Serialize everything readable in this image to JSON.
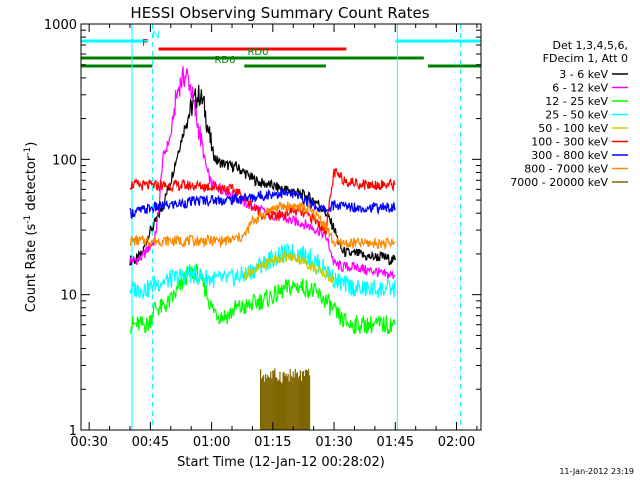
{
  "chart_data": {
    "type": "line",
    "title": "HESSI Observing Summary Count Rates",
    "xlabel": "Start Time (12-Jan-12 00:28:02)",
    "ylabel_prefix": "Count Rate (s",
    "ylabel_sup1": "-1",
    "ylabel_mid": " detector",
    "ylabel_sup2": "-1",
    "ylabel_suffix": ")",
    "ylog": true,
    "ylim": [
      1,
      1000
    ],
    "xlim_min": [
      28,
      126
    ],
    "x_ticks": [
      {
        "min": 30,
        "label": "00:30"
      },
      {
        "min": 45,
        "label": "00:45"
      },
      {
        "min": 60,
        "label": "01:00"
      },
      {
        "min": 75,
        "label": "01:15"
      },
      {
        "min": 90,
        "label": "01:30"
      },
      {
        "min": 105,
        "label": "01:45"
      },
      {
        "min": 120,
        "label": "02:00"
      }
    ],
    "y_ticks": [
      {
        "value": 1,
        "label": "1"
      },
      {
        "value": 10,
        "label": "10"
      },
      {
        "value": 100,
        "label": "100"
      },
      {
        "value": 1000,
        "label": "1000"
      }
    ],
    "legend_header": [
      "Det 1,3,4,5,6,",
      "FDecim 1, Att 0"
    ],
    "series": [
      {
        "name": "3 - 6 keV",
        "color": "#000000",
        "x": [
          40,
          41.5,
          43,
          44.5,
          46,
          48,
          50,
          52,
          54,
          56,
          57,
          58,
          59,
          60,
          61,
          62,
          64,
          66,
          68,
          70,
          72,
          74,
          76,
          78,
          80,
          82,
          84,
          86,
          88,
          89,
          90,
          91,
          92,
          94,
          96,
          98,
          100,
          102,
          104,
          105
        ],
        "y": [
          18,
          18,
          20,
          28,
          33,
          45,
          70,
          120,
          200,
          280,
          300,
          260,
          180,
          120,
          100,
          95,
          90,
          88,
          80,
          72,
          67,
          65,
          62,
          60,
          58,
          55,
          52,
          48,
          40,
          35,
          31,
          25,
          21,
          20,
          20,
          19,
          19,
          19,
          18,
          18
        ]
      },
      {
        "name": "6 - 12 keV",
        "color": "#ff00ff",
        "x": [
          40,
          41.5,
          43,
          44.5,
          46,
          47,
          48,
          50,
          51,
          52,
          53,
          54,
          55,
          56,
          57,
          58,
          59,
          60,
          62,
          64,
          66,
          68,
          70,
          72,
          74,
          76,
          78,
          80,
          82,
          84,
          86,
          88,
          89,
          90,
          92,
          94,
          96,
          98,
          100,
          102,
          104,
          105
        ],
        "y": [
          18,
          18,
          19,
          22,
          25,
          40,
          100,
          150,
          250,
          350,
          400,
          420,
          330,
          220,
          160,
          110,
          80,
          65,
          62,
          58,
          52,
          48,
          45,
          42,
          40,
          38,
          36,
          35,
          34,
          32,
          30,
          27,
          22,
          17,
          16,
          16,
          16,
          15,
          15,
          14,
          14,
          14
        ]
      },
      {
        "name": "12 - 25 keV",
        "color": "#00ff00",
        "x": [
          40,
          41.5,
          43,
          44.5,
          46,
          48,
          50,
          52,
          54,
          56,
          58,
          60,
          62,
          64,
          66,
          68,
          70,
          72,
          74,
          76,
          78,
          80,
          82,
          84,
          86,
          88,
          90,
          92,
          94,
          96,
          98,
          100,
          102,
          104,
          105
        ],
        "y": [
          6,
          6,
          6,
          6,
          8,
          8,
          9,
          11,
          14,
          15,
          12,
          8,
          7,
          7,
          8,
          8,
          8.5,
          9,
          9.5,
          10,
          11,
          11.5,
          11.5,
          11,
          10,
          9,
          7.5,
          6.5,
          6,
          6,
          6,
          6,
          6,
          6,
          6
        ]
      },
      {
        "name": "25 - 50 keV",
        "color": "#00ffff",
        "x": [
          40,
          41.5,
          43,
          44.5,
          46,
          48,
          50,
          52,
          54,
          56,
          58,
          60,
          62,
          64,
          66,
          68,
          70,
          72,
          74,
          76,
          78,
          80,
          82,
          84,
          86,
          88,
          90,
          92,
          94,
          96,
          98,
          100,
          102,
          104,
          105
        ],
        "y": [
          11,
          11,
          11,
          11,
          12,
          12.5,
          13,
          13.5,
          14,
          14,
          13.5,
          13,
          13,
          13,
          13.5,
          14,
          15,
          16.5,
          18,
          19,
          20,
          20.5,
          20,
          19,
          17,
          15.5,
          13,
          12,
          11.5,
          11,
          11,
          11,
          11,
          11,
          11
        ]
      },
      {
        "name": "50 - 100 keV",
        "color": "#cccc00",
        "x": [
          68,
          70,
          72,
          74,
          76,
          78,
          80,
          82,
          84,
          86,
          88,
          90
        ],
        "y": [
          14,
          15,
          16,
          17.5,
          18.5,
          19,
          19,
          18,
          16.5,
          15,
          14,
          13
        ]
      },
      {
        "name": "100 - 300 keV",
        "color": "#ff0000",
        "x": [
          40,
          41.5,
          43,
          44.5,
          46,
          48,
          50,
          52,
          54,
          56,
          58,
          60,
          62,
          64,
          66,
          68,
          70,
          72,
          74,
          76,
          78,
          80,
          82,
          84,
          86,
          88,
          90,
          92,
          94,
          96,
          98,
          100,
          102,
          104,
          105
        ],
        "y": [
          65,
          65,
          64,
          64,
          64,
          64,
          64,
          64,
          64,
          64,
          63,
          63,
          62,
          61,
          58,
          52,
          45,
          40,
          38,
          38,
          40,
          42,
          40,
          38,
          34,
          30,
          80,
          72,
          68,
          66,
          65,
          65,
          65,
          65,
          65
        ]
      },
      {
        "name": "300 - 800 keV",
        "color": "#0000ff",
        "x": [
          40,
          41.5,
          43,
          44.5,
          46,
          48,
          50,
          52,
          54,
          56,
          58,
          60,
          62,
          64,
          66,
          68,
          70,
          72,
          74,
          76,
          78,
          80,
          82,
          84,
          86,
          88,
          90,
          92,
          94,
          96,
          98,
          100,
          102,
          104,
          105
        ],
        "y": [
          40,
          41,
          42,
          43,
          44,
          45,
          46,
          47,
          48,
          49,
          50,
          50,
          50,
          50,
          51,
          52,
          52,
          54,
          55,
          56,
          56,
          55,
          52,
          48,
          44,
          42,
          46,
          45,
          45,
          44,
          44,
          44,
          44,
          44,
          44
        ]
      },
      {
        "name": "800 - 7000 keV",
        "color": "#ff8800",
        "x": [
          40,
          41.5,
          43,
          44.5,
          46,
          48,
          50,
          52,
          54,
          56,
          58,
          60,
          62,
          64,
          66,
          68,
          70,
          72,
          74,
          76,
          78,
          80,
          82,
          84,
          86,
          88,
          90,
          92,
          94,
          96,
          98,
          100,
          102,
          104,
          105
        ],
        "y": [
          25,
          25,
          25,
          25,
          25,
          25,
          25,
          25,
          25,
          25,
          25,
          25,
          25,
          25,
          26,
          27,
          35,
          38,
          42,
          44,
          45,
          45,
          44,
          42,
          38,
          32,
          24,
          24,
          24,
          24,
          24,
          24,
          24,
          24,
          24
        ]
      },
      {
        "name": "7000 - 20000 keV",
        "color": "#806600",
        "x": [
          72,
          74,
          76,
          78,
          80,
          82,
          84
        ],
        "y": [
          2.6,
          2.6,
          2.6,
          2.6,
          2.6,
          2.6,
          2.6
        ]
      }
    ],
    "flag_bars": [
      {
        "label": "N",
        "color": "#00ffff",
        "segments": [
          [
            28,
            44.5
          ],
          [
            105,
            126
          ]
        ]
      },
      {
        "label": "F",
        "color": "#ff0000",
        "segments": [
          [
            47,
            93
          ]
        ]
      },
      {
        "label": "RD0",
        "color": "#008000",
        "segments": [
          [
            28,
            112
          ]
        ]
      },
      {
        "label": "RD6",
        "color": "#008000",
        "segments": [
          [
            28,
            45.5
          ],
          [
            68,
            88
          ],
          [
            113,
            126
          ]
        ]
      }
    ],
    "vertical_markers": [
      {
        "min": 40.5,
        "style": "solid",
        "color": "#00ffff"
      },
      {
        "min": 45.5,
        "style": "dashed",
        "color": "#00ffff"
      },
      {
        "min": 105.5,
        "style": "solid",
        "color": "#00ffff"
      },
      {
        "min": 121,
        "style": "dashed",
        "color": "#00ffff"
      }
    ],
    "timestamp": "11-Jan-2012 23:19",
    "grid": false,
    "legend_position": "right"
  }
}
